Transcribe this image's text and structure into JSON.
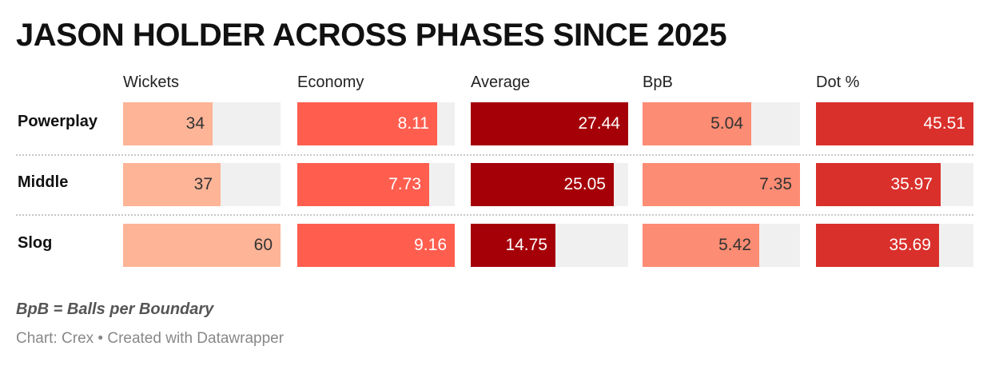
{
  "title": "JASON HOLDER ACROSS PHASES SINCE 2025",
  "note": "BpB = Balls per Boundary",
  "footer": "Chart: Crex • Created with Datawrapper",
  "chart_data": {
    "type": "table",
    "title": "JASON HOLDER ACROSS PHASES SINCE 2025",
    "columns": [
      "Wickets",
      "Economy",
      "Average",
      "BpB",
      "Dot %"
    ],
    "rows": [
      "Powerplay",
      "Middle",
      "Slog"
    ],
    "values": [
      [
        "34",
        "8.11",
        "27.44",
        "5.04",
        "45.51"
      ],
      [
        "37",
        "7.73",
        "25.05",
        "7.35",
        "35.97"
      ],
      [
        "60",
        "9.16",
        "14.75",
        "5.42",
        "35.69"
      ]
    ],
    "bar_fill": [
      [
        0.57,
        0.89,
        1.0,
        0.69,
        1.0
      ],
      [
        0.62,
        0.84,
        0.91,
        1.0,
        0.79
      ],
      [
        1.0,
        1.0,
        0.54,
        0.74,
        0.78
      ]
    ],
    "colors": {
      "Wickets": "#fdb497",
      "Economy": "#ff5e4f",
      "Average": "#a50008",
      "BpB": "#fc8c73",
      "Dot %": "#d9302b",
      "track": "#f0f0f0"
    },
    "text_colors": {
      "Wickets": "#333333",
      "Economy": "#ffffff",
      "Average": "#ffffff",
      "BpB": "#333333",
      "Dot %": "#ffffff"
    }
  }
}
